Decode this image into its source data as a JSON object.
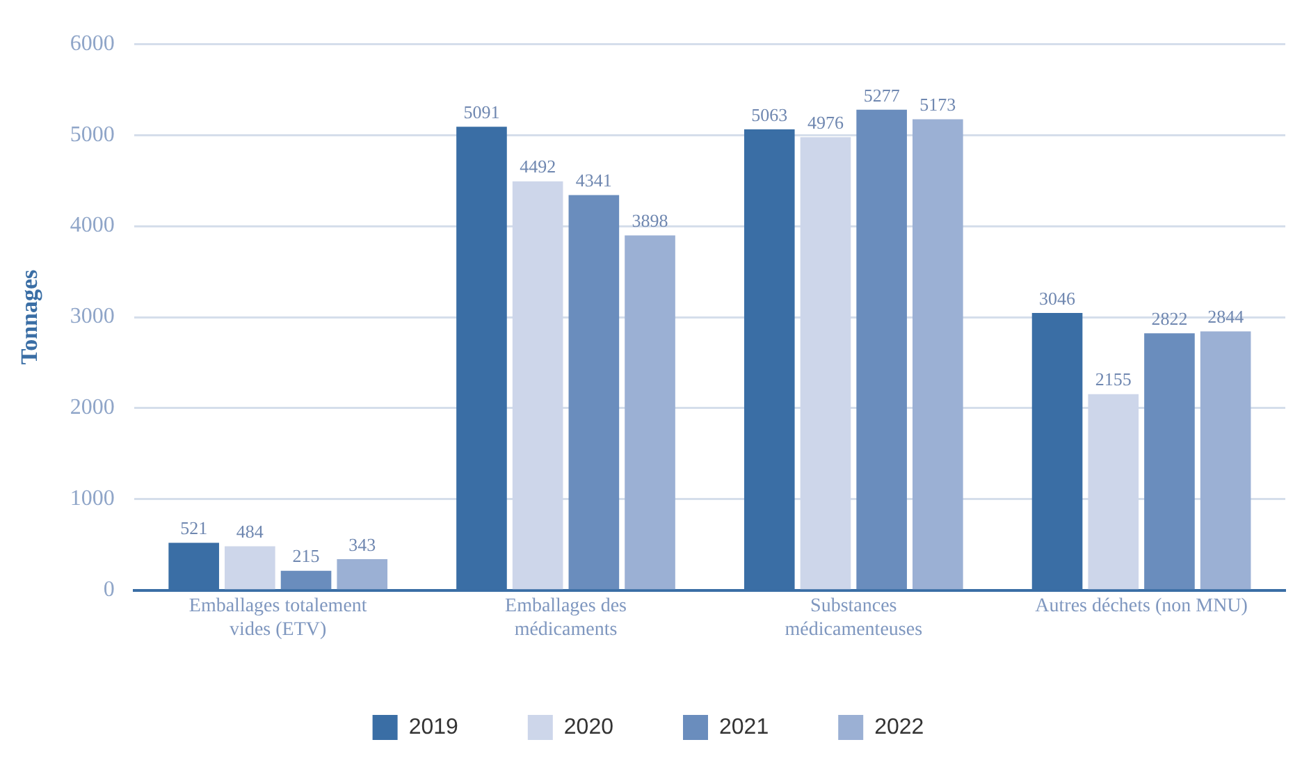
{
  "chart_data": {
    "type": "bar",
    "ylabel": "Tonnages",
    "categories": [
      "Emballages totalement vides (ETV)",
      "Emballages des médicaments",
      "Substances médicamenteuses",
      "Autres déchets (non MNU)"
    ],
    "series": [
      {
        "name": "2019",
        "color": "#3a6ea5",
        "values": [
          521,
          5091,
          5063,
          3046
        ]
      },
      {
        "name": "2020",
        "color": "#cdd6ea",
        "values": [
          484,
          4492,
          4976,
          2155
        ]
      },
      {
        "name": "2021",
        "color": "#6a8dbd",
        "values": [
          215,
          4341,
          5277,
          2822
        ]
      },
      {
        "name": "2022",
        "color": "#9bb0d4",
        "values": [
          343,
          3898,
          5173,
          2844
        ]
      }
    ],
    "ylim": [
      0,
      6000
    ],
    "yticks": [
      0,
      1000,
      2000,
      3000,
      4000,
      5000,
      6000
    ],
    "grid": "y",
    "legend": "bottom",
    "data_labels": true
  }
}
